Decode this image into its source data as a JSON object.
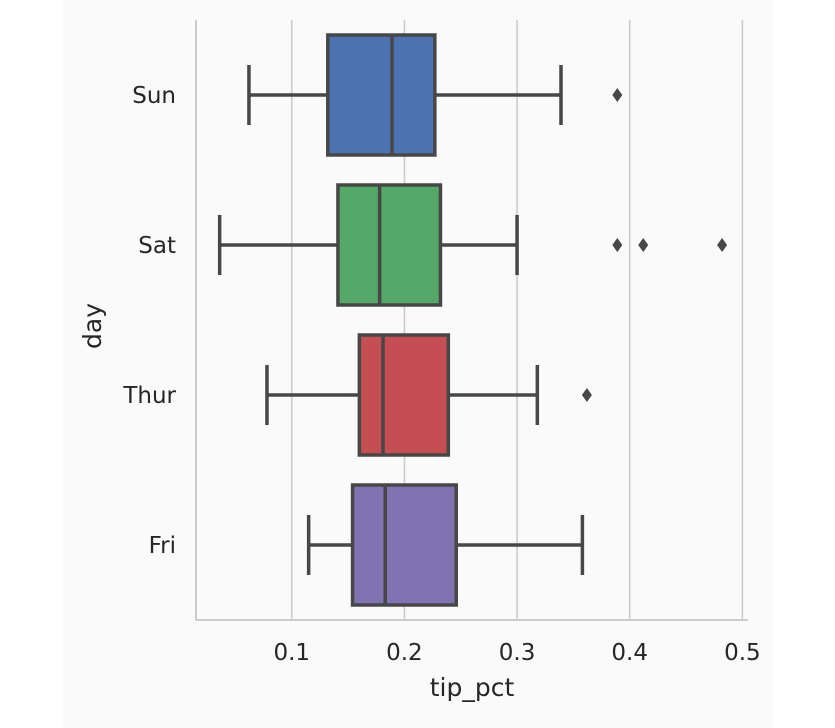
{
  "chart_data": {
    "type": "boxplot",
    "orientation": "horizontal",
    "xlabel": "tip_pct",
    "ylabel": "day",
    "xlim": [
      0.015,
      0.505
    ],
    "xticks": [
      0.1,
      0.2,
      0.3,
      0.4,
      0.5
    ],
    "xtick_labels": [
      "0.1",
      "0.2",
      "0.3",
      "0.4",
      "0.5"
    ],
    "grid": "vertical",
    "categories": [
      "Sun",
      "Sat",
      "Thur",
      "Fri"
    ],
    "colors": [
      "#4c72b0",
      "#55a868",
      "#c44e52",
      "#8172b2"
    ],
    "boxes": [
      {
        "category": "Sun",
        "whisker_low": 0.062,
        "q1": 0.132,
        "median": 0.189,
        "q3": 0.227,
        "whisker_high": 0.339,
        "outliers": [
          0.389
        ]
      },
      {
        "category": "Sat",
        "whisker_low": 0.036,
        "q1": 0.141,
        "median": 0.178,
        "q3": 0.232,
        "whisker_high": 0.3,
        "outliers": [
          0.389,
          0.412,
          0.482
        ]
      },
      {
        "category": "Thur",
        "whisker_low": 0.078,
        "q1": 0.16,
        "median": 0.181,
        "q3": 0.239,
        "whisker_high": 0.318,
        "outliers": [
          0.362
        ]
      },
      {
        "category": "Fri",
        "whisker_low": 0.115,
        "q1": 0.154,
        "median": 0.183,
        "q3": 0.246,
        "whisker_high": 0.358,
        "outliers": []
      }
    ]
  }
}
